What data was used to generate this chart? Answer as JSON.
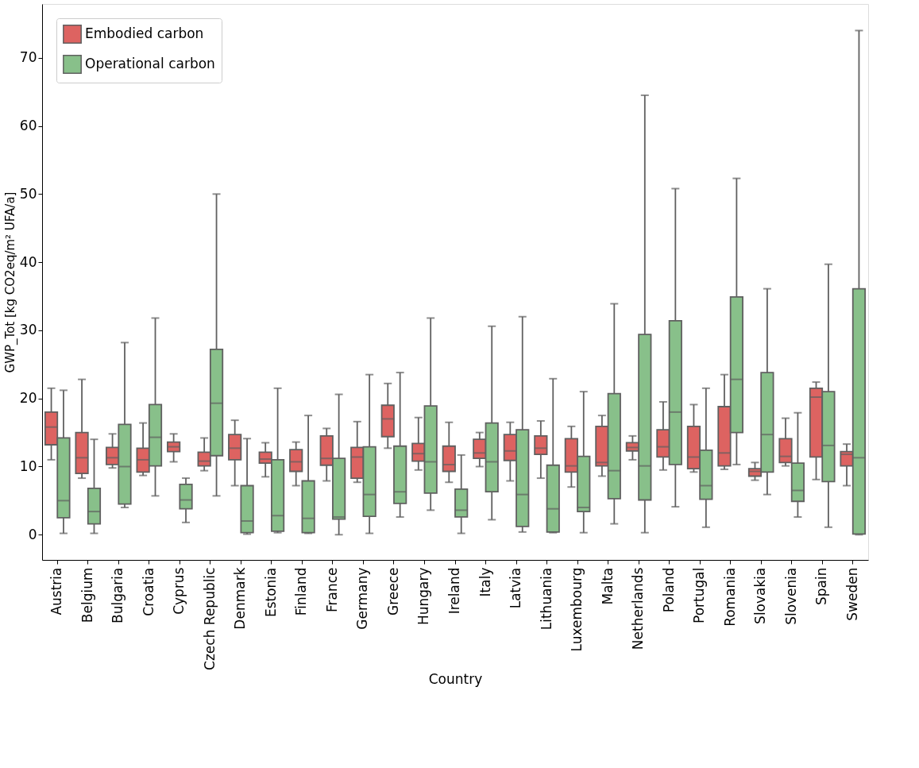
{
  "chart_data": {
    "type": "box",
    "xlabel": "Country",
    "ylabel": "GWP_Tot [kg CO2eq/m² UFA/a]",
    "categories": [
      "Austria",
      "Belgium",
      "Bulgaria",
      "Croatia",
      "Cyprus",
      "Czech Republic",
      "Denmark",
      "Estonia",
      "Finland",
      "France",
      "Germany",
      "Greece",
      "Hungary",
      "Ireland",
      "Italy",
      "Latvia",
      "Lithuania",
      "Luxembourg",
      "Malta",
      "Netherlands",
      "Poland",
      "Portugal",
      "Romania",
      "Slovakia",
      "Slovenia",
      "Spain",
      "Sweden"
    ],
    "ylim": [
      -3.7,
      77.9
    ],
    "yticks": [
      0,
      10,
      20,
      30,
      40,
      50,
      60,
      70
    ],
    "grid": false,
    "legend": "top left",
    "series": [
      {
        "name": "Embodied carbon",
        "color": "#dd6361",
        "boxes": [
          {
            "low": 11,
            "q1": 13.2,
            "median": 15.8,
            "q3": 18,
            "high": 21.5
          },
          {
            "low": 8.3,
            "q1": 9,
            "median": 11.3,
            "q3": 15,
            "high": 22.8
          },
          {
            "low": 9.8,
            "q1": 10.3,
            "median": 11.3,
            "q3": 12.8,
            "high": 14.8
          },
          {
            "low": 8.7,
            "q1": 9.2,
            "median": 11,
            "q3": 12.7,
            "high": 16.4
          },
          {
            "low": 10.7,
            "q1": 12.2,
            "median": 12.9,
            "q3": 13.6,
            "high": 14.8
          },
          {
            "low": 9.4,
            "q1": 10.1,
            "median": 10.8,
            "q3": 12.1,
            "high": 14.2
          },
          {
            "low": 7.2,
            "q1": 11,
            "median": 12.7,
            "q3": 14.7,
            "high": 16.8
          },
          {
            "low": 8.5,
            "q1": 10.5,
            "median": 11.1,
            "q3": 12.1,
            "high": 13.5
          },
          {
            "low": 7.2,
            "q1": 9.3,
            "median": 10.7,
            "q3": 12.5,
            "high": 13.6
          },
          {
            "low": 7.9,
            "q1": 10.2,
            "median": 11.2,
            "q3": 14.5,
            "high": 15.6
          },
          {
            "low": 7.7,
            "q1": 8.3,
            "median": 11.4,
            "q3": 12.8,
            "high": 16.6
          },
          {
            "low": 12.7,
            "q1": 14.4,
            "median": 17,
            "q3": 19,
            "high": 22.2
          },
          {
            "low": 9.5,
            "q1": 10.8,
            "median": 11.9,
            "q3": 13.4,
            "high": 17.2
          },
          {
            "low": 7.7,
            "q1": 9.3,
            "median": 10.3,
            "q3": 13,
            "high": 16.5
          },
          {
            "low": 10,
            "q1": 11.2,
            "median": 12,
            "q3": 14,
            "high": 15
          },
          {
            "low": 7.9,
            "q1": 10.9,
            "median": 12.3,
            "q3": 14.7,
            "high": 16.5
          },
          {
            "low": 8.3,
            "q1": 11.8,
            "median": 12.7,
            "q3": 14.5,
            "high": 16.7
          },
          {
            "low": 7,
            "q1": 9.2,
            "median": 10.1,
            "q3": 14.1,
            "high": 15.9
          },
          {
            "low": 8.6,
            "q1": 10.1,
            "median": 10.6,
            "q3": 15.9,
            "high": 17.5
          },
          {
            "low": 11,
            "q1": 12.3,
            "median": 12.8,
            "q3": 13.5,
            "high": 14.5
          },
          {
            "low": 9.5,
            "q1": 11.4,
            "median": 12.9,
            "q3": 15.4,
            "high": 19.5
          },
          {
            "low": 9.2,
            "q1": 9.7,
            "median": 11.4,
            "q3": 15.9,
            "high": 19.1
          },
          {
            "low": 9.6,
            "q1": 10.1,
            "median": 12,
            "q3": 18.8,
            "high": 23.5
          },
          {
            "low": 8,
            "q1": 8.6,
            "median": 9.3,
            "q3": 9.7,
            "high": 10.6
          },
          {
            "low": 10.1,
            "q1": 10.6,
            "median": 11.5,
            "q3": 14.1,
            "high": 17.1
          },
          {
            "low": 8.1,
            "q1": 11.4,
            "median": 20.2,
            "q3": 21.5,
            "high": 22.4
          },
          {
            "low": 7.2,
            "q1": 10.1,
            "median": 11.8,
            "q3": 12.2,
            "high": 13.3
          }
        ]
      },
      {
        "name": "Operational carbon",
        "color": "#88c08a",
        "boxes": [
          {
            "low": 0.2,
            "q1": 2.5,
            "median": 5,
            "q3": 14.2,
            "high": 21.2
          },
          {
            "low": 0.2,
            "q1": 1.6,
            "median": 3.4,
            "q3": 6.8,
            "high": 14
          },
          {
            "low": 4,
            "q1": 4.5,
            "median": 10,
            "q3": 16.2,
            "high": 28.2
          },
          {
            "low": 5.7,
            "q1": 10.1,
            "median": 14.3,
            "q3": 19.1,
            "high": 31.8
          },
          {
            "low": 1.8,
            "q1": 3.8,
            "median": 5.1,
            "q3": 7.4,
            "high": 8.3
          },
          {
            "low": 5.7,
            "q1": 11.6,
            "median": 19.3,
            "q3": 27.2,
            "high": 50
          },
          {
            "low": 0.1,
            "q1": 0.3,
            "median": 2,
            "q3": 7.2,
            "high": 14.1
          },
          {
            "low": 0.3,
            "q1": 0.5,
            "median": 2.8,
            "q3": 11,
            "high": 21.5
          },
          {
            "low": 0.2,
            "q1": 0.3,
            "median": 2.4,
            "q3": 7.9,
            "high": 17.5
          },
          {
            "low": 0,
            "q1": 2.3,
            "median": 2.6,
            "q3": 11.2,
            "high": 20.6
          },
          {
            "low": 0.2,
            "q1": 2.7,
            "median": 5.9,
            "q3": 12.9,
            "high": 23.5
          },
          {
            "low": 2.6,
            "q1": 4.6,
            "median": 6.3,
            "q3": 13,
            "high": 23.8
          },
          {
            "low": 3.6,
            "q1": 6.1,
            "median": 10.7,
            "q3": 18.9,
            "high": 31.8
          },
          {
            "low": 0.2,
            "q1": 2.6,
            "median": 3.6,
            "q3": 6.7,
            "high": 11.7
          },
          {
            "low": 2.2,
            "q1": 6.3,
            "median": 10.7,
            "q3": 16.4,
            "high": 30.6
          },
          {
            "low": 0.4,
            "q1": 1.2,
            "median": 5.9,
            "q3": 15.4,
            "high": 32
          },
          {
            "low": 0.3,
            "q1": 0.4,
            "median": 3.8,
            "q3": 10.2,
            "high": 22.9
          },
          {
            "low": 0.3,
            "q1": 3.4,
            "median": 4,
            "q3": 11.5,
            "high": 21
          },
          {
            "low": 1.6,
            "q1": 5.3,
            "median": 9.4,
            "q3": 20.7,
            "high": 33.9
          },
          {
            "low": 0.3,
            "q1": 5.1,
            "median": 10.1,
            "q3": 29.4,
            "high": 64.5
          },
          {
            "low": 4.1,
            "q1": 10.3,
            "median": 18,
            "q3": 31.4,
            "high": 50.8
          },
          {
            "low": 1.1,
            "q1": 5.2,
            "median": 7.2,
            "q3": 12.4,
            "high": 21.5
          },
          {
            "low": 10.3,
            "q1": 15,
            "median": 22.8,
            "q3": 34.9,
            "high": 52.3
          },
          {
            "low": 5.9,
            "q1": 9.2,
            "median": 14.7,
            "q3": 23.8,
            "high": 36.1
          },
          {
            "low": 2.6,
            "q1": 4.9,
            "median": 6.5,
            "q3": 10.5,
            "high": 17.9
          },
          {
            "low": 1.1,
            "q1": 7.8,
            "median": 13.1,
            "q3": 21,
            "high": 39.7
          },
          {
            "low": 0,
            "q1": 0.1,
            "median": 11.3,
            "q3": 36.1,
            "high": 74
          }
        ]
      }
    ]
  }
}
